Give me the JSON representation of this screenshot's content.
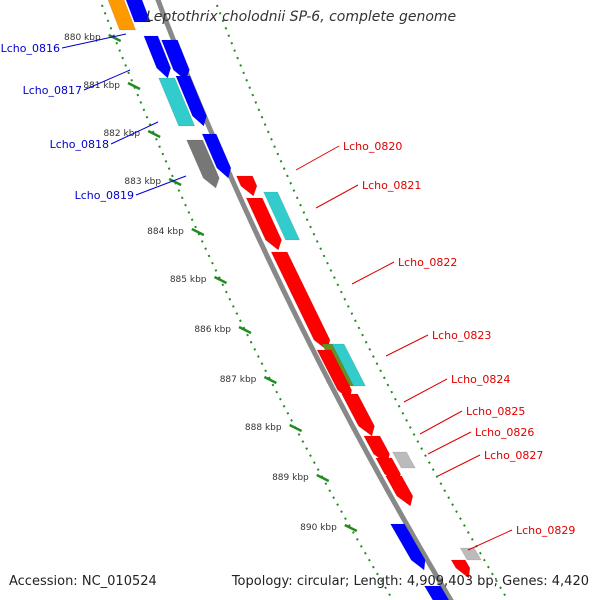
{
  "header": {
    "title": "Leptothrix cholodnii SP-6, complete genome"
  },
  "footer": {
    "accession_label": "Accession:",
    "accession_value": "NC_010524",
    "topology_label": "Topology:",
    "topology_value": "circular",
    "length_label": "Length:",
    "length_value": "4,909,403 bp",
    "genes_label": "Genes:",
    "genes_value": "4,420"
  },
  "colors": {
    "forward": "#ff0000",
    "reverse": "#0000ff",
    "rna_cyan": "#33cccc",
    "gray_feature": "#777777",
    "orange": "#ff9900",
    "olive": "#6b8e23",
    "backbone": "#888888",
    "ticks": "#228b22",
    "label_forward": "#dd0000",
    "label_reverse": "#0000cc"
  },
  "ticks": [
    {
      "label": "880 kbp"
    },
    {
      "label": "881 kbp"
    },
    {
      "label": "882 kbp"
    },
    {
      "label": "883 kbp"
    },
    {
      "label": "884 kbp"
    },
    {
      "label": "885 kbp"
    },
    {
      "label": "886 kbp"
    },
    {
      "label": "887 kbp"
    },
    {
      "label": "888 kbp"
    },
    {
      "label": "889 kbp"
    },
    {
      "label": "890 kbp"
    }
  ],
  "gene_labels": [
    {
      "name": "Lcho_0816",
      "strand": "reverse"
    },
    {
      "name": "Lcho_0817",
      "strand": "reverse"
    },
    {
      "name": "Lcho_0818",
      "strand": "reverse"
    },
    {
      "name": "Lcho_0819",
      "strand": "reverse"
    },
    {
      "name": "Lcho_0820",
      "strand": "forward"
    },
    {
      "name": "Lcho_0821",
      "strand": "forward"
    },
    {
      "name": "Lcho_0822",
      "strand": "forward"
    },
    {
      "name": "Lcho_0823",
      "strand": "forward"
    },
    {
      "name": "Lcho_0824",
      "strand": "forward"
    },
    {
      "name": "Lcho_0825",
      "strand": "forward"
    },
    {
      "name": "Lcho_0826",
      "strand": "forward"
    },
    {
      "name": "Lcho_0827",
      "strand": "forward"
    },
    {
      "name": "Lcho_0829",
      "strand": "forward"
    }
  ]
}
